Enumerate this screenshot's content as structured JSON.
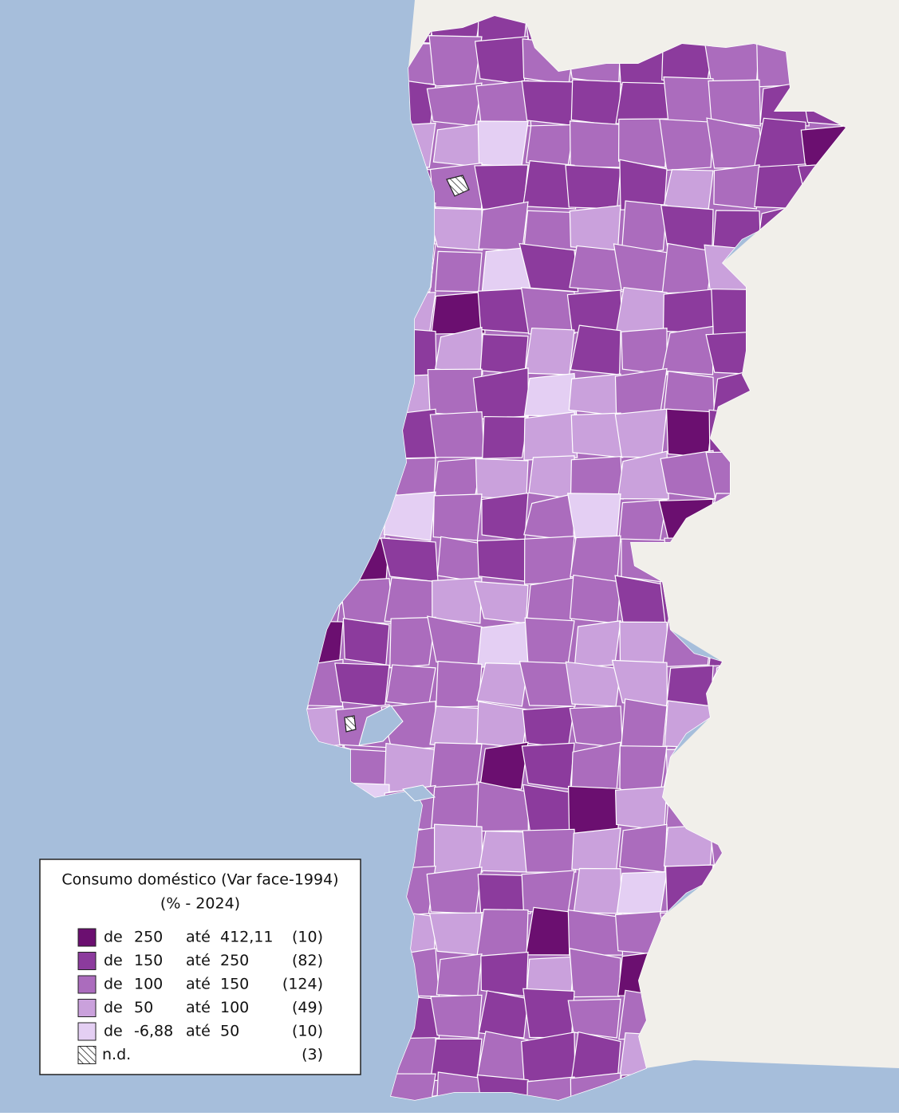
{
  "legend": {
    "title": "Consumo doméstico (Var face-1994)",
    "subtitle": "(% - 2024)",
    "from_word": "de",
    "to_word": "até",
    "classes": [
      {
        "from": "250",
        "to": "412,11",
        "count": "(10)",
        "color": "#6b0f70"
      },
      {
        "from": "150",
        "to": "250",
        "count": "(82)",
        "color": "#8c3b9d"
      },
      {
        "from": "100",
        "to": "150",
        "count": "(124)",
        "color": "#ab6cbd"
      },
      {
        "from": "50",
        "to": "100",
        "count": "(49)",
        "color": "#caa1dc"
      },
      {
        "from": "-6,88",
        "to": "50",
        "count": "(10)",
        "color": "#e4cff3"
      }
    ],
    "nd": {
      "label": "n.d.",
      "count": "(3)"
    }
  }
}
